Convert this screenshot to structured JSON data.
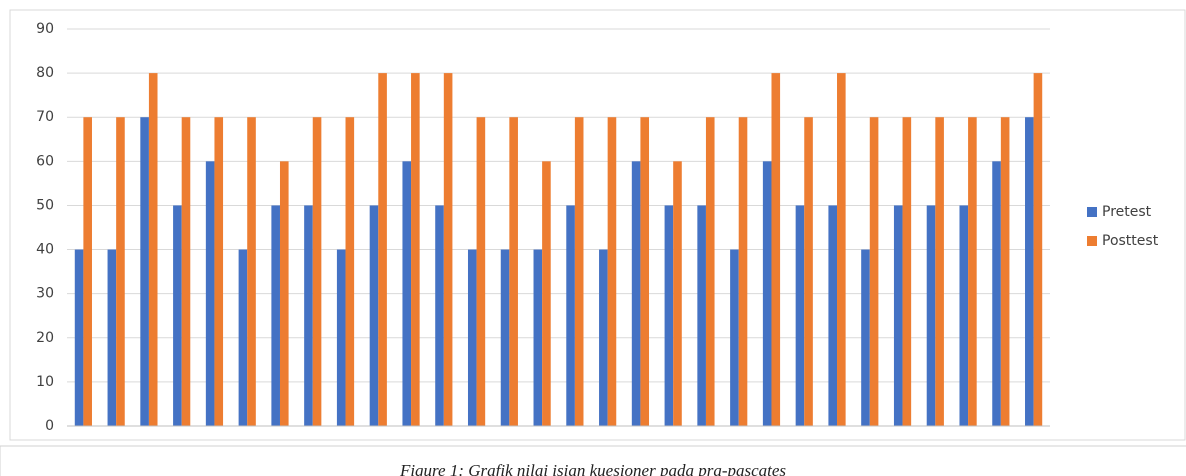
{
  "chart_data": {
    "type": "bar",
    "categories": [
      null,
      null,
      null,
      null,
      null,
      null,
      null,
      null,
      null,
      null,
      null,
      null,
      null,
      null,
      null,
      null,
      null,
      null,
      null,
      null,
      null,
      null,
      null,
      null,
      null,
      null,
      null,
      null,
      null,
      null
    ],
    "series": [
      {
        "name": "Pretest",
        "color": "#4472c4",
        "values": [
          40,
          40,
          70,
          50,
          60,
          40,
          50,
          50,
          40,
          50,
          60,
          50,
          40,
          40,
          40,
          50,
          40,
          60,
          50,
          50,
          40,
          60,
          50,
          50,
          40,
          50,
          50,
          50,
          60,
          70
        ]
      },
      {
        "name": "Posttest",
        "color": "#ed7d31",
        "values": [
          70,
          70,
          80,
          70,
          70,
          70,
          60,
          70,
          70,
          80,
          80,
          80,
          70,
          70,
          60,
          70,
          70,
          70,
          60,
          70,
          70,
          80,
          70,
          80,
          70,
          70,
          70,
          70,
          70,
          80
        ]
      }
    ],
    "ylim": [
      0,
      90
    ],
    "yticks": [
      0,
      10,
      20,
      30,
      40,
      50,
      60,
      70,
      80,
      90
    ],
    "grid": true,
    "legend": "right",
    "caption": "Figure 1: Grafik nilai isian kuesioner pada pra-pascates"
  }
}
